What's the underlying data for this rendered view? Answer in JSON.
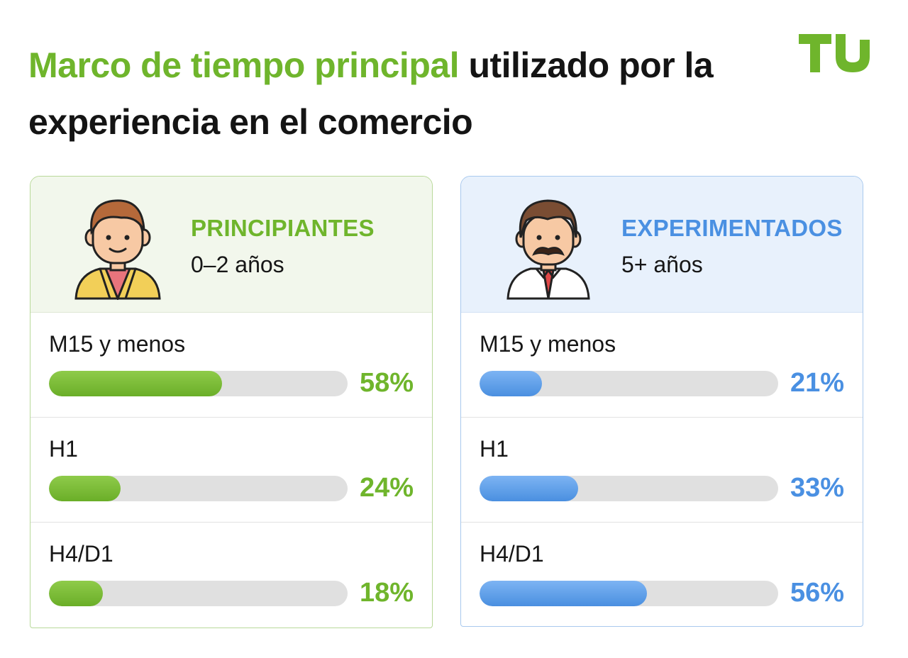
{
  "header": {
    "title_accent": "Marco de tiempo principal",
    "title_rest": " utilizado por la experiencia en el comercio"
  },
  "colors": {
    "green": "#6fb52c",
    "blue": "#4a90e2"
  },
  "logo_icon": "tu-logo-icon",
  "chart_data": [
    {
      "type": "bar",
      "orientation": "horizontal",
      "title": "PRINCIPIANTES",
      "subtitle": "0–2 años",
      "categories": [
        "M15 y menos",
        "H1",
        "H4/D1"
      ],
      "values": [
        58,
        24,
        18
      ],
      "value_labels": [
        "58%",
        "24%",
        "18%"
      ],
      "xlim": [
        0,
        100
      ],
      "color": "#6fb52c"
    },
    {
      "type": "bar",
      "orientation": "horizontal",
      "title": "EXPERIMENTADOS",
      "subtitle": "5+ años",
      "categories": [
        "M15 y menos",
        "H1",
        "H4/D1"
      ],
      "values": [
        21,
        33,
        56
      ],
      "value_labels": [
        "21%",
        "33%",
        "56%"
      ],
      "xlim": [
        0,
        100
      ],
      "color": "#4a90e2"
    }
  ]
}
